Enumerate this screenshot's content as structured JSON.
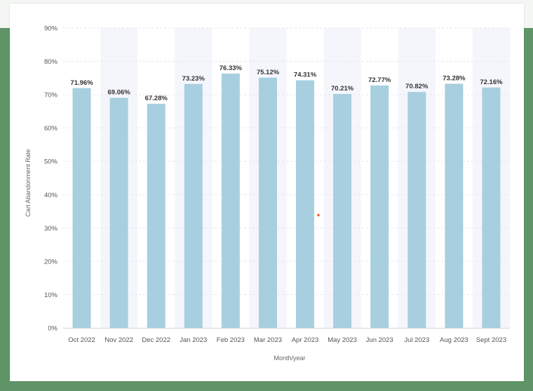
{
  "chart_data": {
    "type": "bar",
    "title": "",
    "xlabel": "Month/year",
    "ylabel": "Cart Abandonment Rate",
    "ylim": [
      0,
      90
    ],
    "yticks": [
      0,
      10,
      20,
      30,
      40,
      50,
      60,
      70,
      80,
      90
    ],
    "ytick_labels": [
      "0%",
      "10%",
      "20%",
      "30%",
      "40%",
      "50%",
      "60%",
      "70%",
      "80%",
      "90%"
    ],
    "categories": [
      "Oct 2022",
      "Nov 2022",
      "Dec 2022",
      "Jan 2023",
      "Feb 2023",
      "Mar 2023",
      "Apr 2023",
      "May 2023",
      "Jun 2023",
      "Jul 2023",
      "Aug 2023",
      "Sept 2023"
    ],
    "values": [
      71.96,
      69.06,
      67.28,
      73.23,
      76.33,
      75.12,
      74.31,
      70.21,
      72.77,
      70.82,
      73.28,
      72.16
    ],
    "value_labels": [
      "71.96%",
      "69.06%",
      "67.28%",
      "73.23%",
      "76.33%",
      "75.12%",
      "74.31%",
      "70.21%",
      "72.77%",
      "70.82%",
      "73.28%",
      "72.16%"
    ],
    "grid": true,
    "colors": {
      "bar": "#a8cfdf",
      "band": "#f5f6fc",
      "grid": "#e4e6ee",
      "text": "#555555",
      "label": "#333333",
      "frame": "#5f9466",
      "marker": "#f05a28"
    }
  }
}
